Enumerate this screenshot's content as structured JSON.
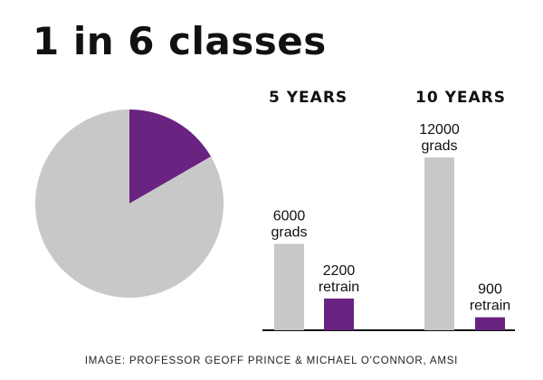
{
  "title": "1 in 6 classes",
  "credit": "IMAGE: PROFESSOR GEOFF PRINCE & MICHAEL O'CONNOR, AMSI",
  "colors": {
    "grey": "#c8c8c8",
    "purple": "#6a2381",
    "text": "#111111",
    "axis": "#111111"
  },
  "chart_data": [
    {
      "type": "pie",
      "slices": [
        {
          "label": "",
          "value": 1,
          "color": "#6a2381"
        },
        {
          "label": "",
          "value": 5,
          "color": "#c8c8c8"
        }
      ]
    },
    {
      "type": "bar",
      "groups": [
        {
          "label": "5 YEARS",
          "bars": [
            {
              "value": 6000,
              "line1": "6000",
              "line2": "grads",
              "color": "#c8c8c8"
            },
            {
              "value": 2200,
              "line1": "2200",
              "line2": "retrain",
              "color": "#6a2381"
            }
          ]
        },
        {
          "label": "10 YEARS",
          "bars": [
            {
              "value": 12000,
              "line1": "12000",
              "line2": "grads",
              "color": "#c8c8c8"
            },
            {
              "value": 900,
              "line1": "900",
              "line2": "retrain",
              "color": "#6a2381"
            }
          ]
        }
      ],
      "ylim": [
        0,
        12000
      ]
    }
  ]
}
